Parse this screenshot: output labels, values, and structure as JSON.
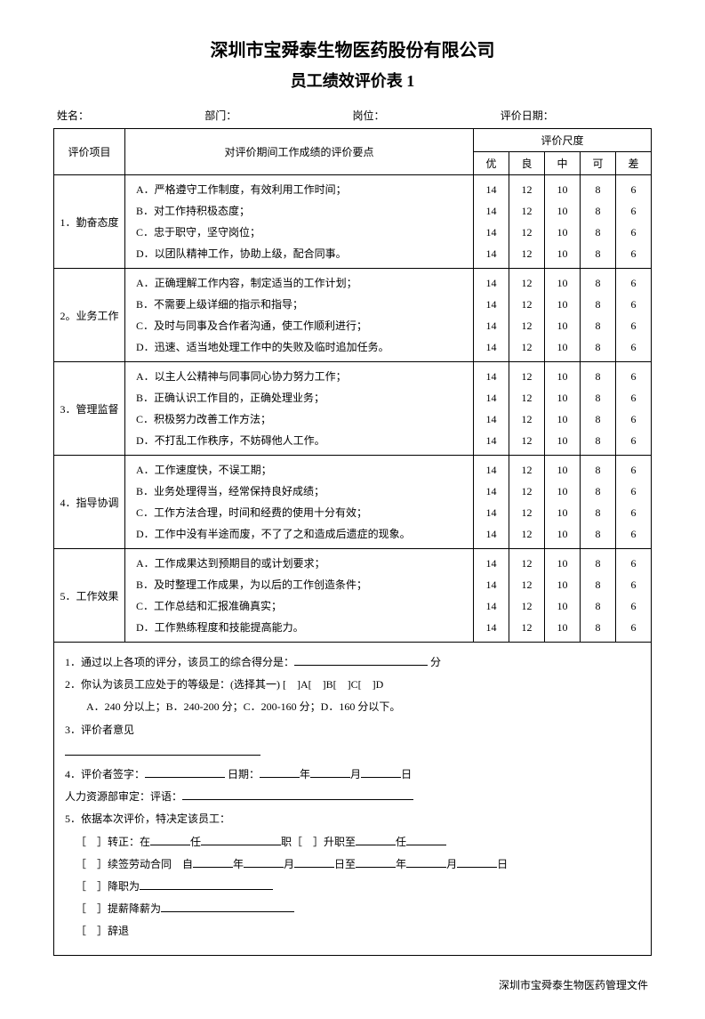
{
  "company": "深圳市宝舜泰生物医药股份有限公司",
  "form_title": "员工绩效评价表 1",
  "header": {
    "name_label": "姓名：",
    "dept_label": "部门：",
    "post_label": "岗位：",
    "date_label": "评价日期："
  },
  "table_headers": {
    "category": "评价项目",
    "criteria": "对评价期间工作成绩的评价要点",
    "scale": "评价尺度",
    "levels": [
      "优",
      "良",
      "中",
      "可",
      "差"
    ]
  },
  "scores": [
    "14",
    "12",
    "10",
    "8",
    "6"
  ],
  "sections": [
    {
      "name": "1．勤奋态度",
      "items": [
        "A．严格遵守工作制度，有效利用工作时间；",
        "B．对工作持积极态度；",
        "C．忠于职守，坚守岗位；",
        "D．以团队精神工作，协助上级，配合同事。"
      ]
    },
    {
      "name": "2。业务工作",
      "items": [
        "A．正确理解工作内容，制定适当的工作计划；",
        "B．不需要上级详细的指示和指导；",
        "C．及时与同事及合作者沟通，使工作顺利进行；",
        "D．迅速、适当地处理工作中的失败及临时追加任务。"
      ]
    },
    {
      "name": "3．管理监督",
      "items": [
        "A．以主人公精神与同事同心协力努力工作；",
        "B．正确认识工作目的，正确处理业务；",
        "C．积极努力改善工作方法；",
        "D．不打乱工作秩序，不妨碍他人工作。"
      ]
    },
    {
      "name": "4．指导协调",
      "items": [
        "A．工作速度快，不误工期；",
        "B．业务处理得当，经常保持良好成绩；",
        "C．工作方法合理，时间和经费的使用十分有效；",
        "D．工作中没有半途而废，不了了之和造成后遗症的现象。"
      ]
    },
    {
      "name": "5．工作效果",
      "items": [
        "A．工作成果达到预期目的或计划要求；",
        "B．及时整理工作成果，为以后的工作创造条件；",
        "C．工作总结和汇报准确真实；",
        "D．工作熟练程度和技能提高能力。"
      ]
    }
  ],
  "footer": {
    "line1a": "1．通过以上各项的评分，该员工的综合得分是：",
    "line1b": "分",
    "line2": "2．你认为该员工应处于的等级是：(选择其一) [　]A[　]B[　]C[　]D",
    "line2sub": "A．240 分以上；B．240-200 分；C．200-160 分；D．160 分以下。",
    "line3": "3．评价者意见",
    "line4a": "4．评价者签字：",
    "line4b": "日期：",
    "line4c": "年",
    "line4d": "月",
    "line4e": "日",
    "hr_label": "人力资源部审定：评语：",
    "line5": "5．依据本次评价，特决定该员工：",
    "opt1": "［　］转正：在",
    "opt1b": "任",
    "opt1c": "职［　］升职至",
    "opt1d": "任",
    "opt2": "［　］续签劳动合同　自",
    "opt2b": "年",
    "opt2c": "月",
    "opt2d": "日至",
    "opt2e": "年",
    "opt2f": "月",
    "opt2g": "日",
    "opt3": "［　］降职为",
    "opt4": "［　］提薪降薪为",
    "opt5": "［　］辞退"
  },
  "footer_note": "深圳市宝舜泰生物医药管理文件"
}
